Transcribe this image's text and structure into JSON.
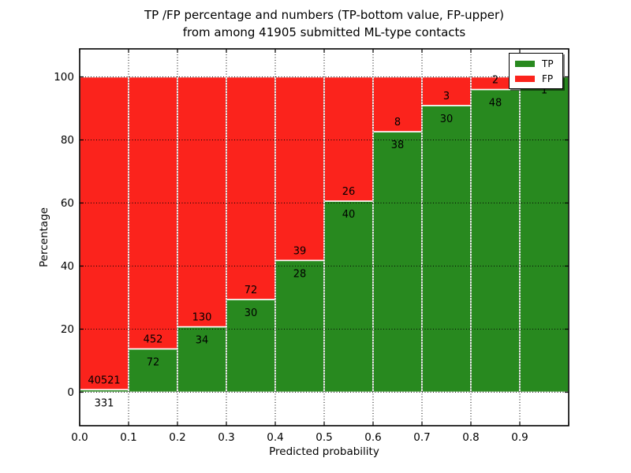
{
  "chart_data": {
    "type": "bar",
    "stacked": true,
    "title": "TP /FP percentage and numbers (TP-bottom value, FP-upper)",
    "subtitle": "from among 41905 submitted ML-type contacts",
    "xlabel": "Predicted probability",
    "ylabel": "Percentage",
    "total_contacts": 41905,
    "x_tick_labels": [
      "0.0",
      "0.1",
      "0.2",
      "0.3",
      "0.4",
      "0.5",
      "0.6",
      "0.7",
      "0.8",
      "0.9"
    ],
    "y_ticks": [
      0,
      20,
      40,
      60,
      80,
      100
    ],
    "bin_width": 0.1,
    "bins": [
      {
        "range": "0.0-0.1",
        "tp": 331,
        "fp": 40521,
        "tp_pct": 0.81
      },
      {
        "range": "0.1-0.2",
        "tp": 72,
        "fp": 452,
        "tp_pct": 13.74
      },
      {
        "range": "0.2-0.3",
        "tp": 34,
        "fp": 130,
        "tp_pct": 20.73
      },
      {
        "range": "0.3-0.4",
        "tp": 30,
        "fp": 72,
        "tp_pct": 29.41
      },
      {
        "range": "0.4-0.5",
        "tp": 28,
        "fp": 39,
        "tp_pct": 41.79
      },
      {
        "range": "0.5-0.6",
        "tp": 40,
        "fp": 26,
        "tp_pct": 60.61
      },
      {
        "range": "0.6-0.7",
        "tp": 38,
        "fp": 8,
        "tp_pct": 82.61
      },
      {
        "range": "0.7-0.8",
        "tp": 30,
        "fp": 3,
        "tp_pct": 90.91
      },
      {
        "range": "0.8-0.9",
        "tp": 48,
        "fp": 2,
        "tp_pct": 96.0
      },
      {
        "range": "0.9-1.0",
        "tp": 1,
        "fp": 0,
        "tp_pct": 100.0
      }
    ],
    "series": [
      {
        "name": "TP",
        "color": "#28891f"
      },
      {
        "name": "FP",
        "color": "#fb231c"
      }
    ],
    "legend_position": "upper right",
    "grid": {
      "style": "dotted",
      "color": "#000000"
    },
    "bar_edge_color": "#ffffff",
    "ylim": [
      -10.75,
      108.75
    ],
    "xlim": [
      0.0,
      1.0
    ]
  }
}
